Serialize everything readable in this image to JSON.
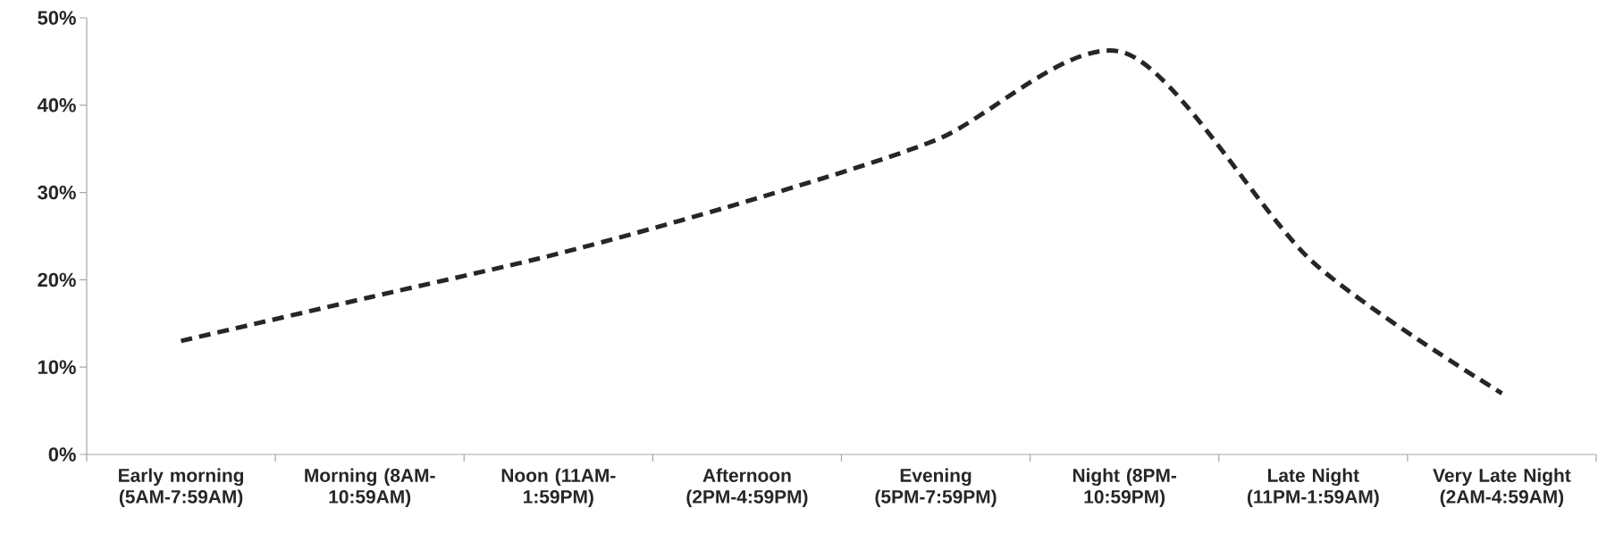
{
  "chart_data": {
    "type": "line",
    "categories": [
      "Early morning (5AM-7:59AM)",
      "Morning (8AM-10:59AM)",
      "Noon (11AM-1:59PM)",
      "Afternoon (2PM-4:59PM)",
      "Evening (5PM-7:59PM)",
      "Night (8PM-10:59PM)",
      "Late Night (11PM-1:59AM)",
      "Very Late Night (2AM-4:59AM)"
    ],
    "values": [
      13,
      18,
      23,
      29,
      36,
      46,
      22,
      7
    ],
    "color": "#262626",
    "line_style": "dashed",
    "ylim": [
      0,
      50
    ],
    "yticks": [
      {
        "value": 0,
        "label": "0%"
      },
      {
        "value": 10,
        "label": "10%"
      },
      {
        "value": 20,
        "label": "20%"
      },
      {
        "value": 30,
        "label": "30%"
      },
      {
        "value": 40,
        "label": "40%"
      },
      {
        "value": 50,
        "label": "50%"
      }
    ]
  }
}
